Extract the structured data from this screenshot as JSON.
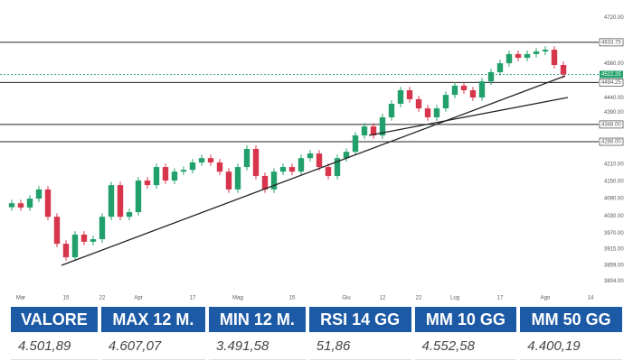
{
  "chart_data": {
    "type": "candlestick",
    "up_color": "#22a06b",
    "down_color": "#d6354b",
    "ohlc": [
      [
        4060,
        4086,
        4048,
        4074
      ],
      [
        4074,
        4086,
        4047,
        4059
      ],
      [
        4059,
        4102,
        4047,
        4090
      ],
      [
        4090,
        4134,
        4078,
        4122
      ],
      [
        4122,
        4134,
        4015,
        4027
      ],
      [
        4027,
        4039,
        3921,
        3933
      ],
      [
        3933,
        3945,
        3874,
        3886
      ],
      [
        3886,
        3977,
        3874,
        3965
      ],
      [
        3965,
        3977,
        3928,
        3940
      ],
      [
        3940,
        3961,
        3928,
        3949
      ],
      [
        3949,
        4039,
        3937,
        4027
      ],
      [
        4027,
        4149,
        4015,
        4137
      ],
      [
        4137,
        4149,
        4015,
        4027
      ],
      [
        4027,
        4055,
        4015,
        4043
      ],
      [
        4043,
        4165,
        4031,
        4153
      ],
      [
        4153,
        4165,
        4125,
        4137
      ],
      [
        4137,
        4212,
        4125,
        4200
      ],
      [
        4200,
        4212,
        4141,
        4153
      ],
      [
        4153,
        4196,
        4141,
        4184
      ],
      [
        4184,
        4202,
        4172,
        4190
      ],
      [
        4190,
        4228,
        4178,
        4216
      ],
      [
        4216,
        4243,
        4204,
        4231
      ],
      [
        4231,
        4243,
        4204,
        4216
      ],
      [
        4216,
        4228,
        4172,
        4184
      ],
      [
        4184,
        4196,
        4110,
        4122
      ],
      [
        4122,
        4212,
        4110,
        4200
      ],
      [
        4200,
        4275,
        4188,
        4263
      ],
      [
        4263,
        4275,
        4157,
        4169
      ],
      [
        4169,
        4181,
        4110,
        4122
      ],
      [
        4122,
        4196,
        4110,
        4184
      ],
      [
        4184,
        4212,
        4172,
        4200
      ],
      [
        4200,
        4212,
        4172,
        4184
      ],
      [
        4184,
        4243,
        4172,
        4231
      ],
      [
        4231,
        4259,
        4219,
        4247
      ],
      [
        4247,
        4259,
        4188,
        4200
      ],
      [
        4200,
        4212,
        4157,
        4169
      ],
      [
        4169,
        4243,
        4157,
        4231
      ],
      [
        4231,
        4265,
        4219,
        4253
      ],
      [
        4253,
        4322,
        4241,
        4310
      ],
      [
        4310,
        4353,
        4298,
        4341
      ],
      [
        4341,
        4353,
        4298,
        4310
      ],
      [
        4310,
        4385,
        4298,
        4373
      ],
      [
        4373,
        4432,
        4361,
        4420
      ],
      [
        4420,
        4479,
        4408,
        4467
      ],
      [
        4467,
        4479,
        4424,
        4436
      ],
      [
        4436,
        4448,
        4392,
        4404
      ],
      [
        4404,
        4416,
        4361,
        4373
      ],
      [
        4373,
        4416,
        4361,
        4404
      ],
      [
        4404,
        4463,
        4392,
        4451
      ],
      [
        4451,
        4495,
        4439,
        4483
      ],
      [
        4483,
        4495,
        4455,
        4467
      ],
      [
        4467,
        4479,
        4430,
        4442
      ],
      [
        4442,
        4510,
        4430,
        4498
      ],
      [
        4498,
        4542,
        4486,
        4530
      ],
      [
        4530,
        4573,
        4518,
        4561
      ],
      [
        4561,
        4605,
        4549,
        4593
      ],
      [
        4593,
        4605,
        4568,
        4580
      ],
      [
        4580,
        4605,
        4568,
        4593
      ],
      [
        4593,
        4614,
        4581,
        4602
      ],
      [
        4602,
        4620,
        4590,
        4608
      ],
      [
        4608,
        4620,
        4543,
        4555
      ],
      [
        4555,
        4567,
        4510,
        4522.25
      ]
    ],
    "ylim": [
      3745,
      4781
    ],
    "yticks": [
      {
        "value": 4720,
        "label": "4720.00"
      },
      {
        "value": 4560,
        "label": "4560.00"
      },
      {
        "value": 4440,
        "label": "4440.00"
      },
      {
        "value": 4390,
        "label": "4390.00"
      },
      {
        "value": 4210,
        "label": "4210.00"
      },
      {
        "value": 4150,
        "label": "4150.00"
      },
      {
        "value": 4090,
        "label": "4090.00"
      },
      {
        "value": 4030,
        "label": "4030.00"
      },
      {
        "value": 3970,
        "label": "3970.00"
      },
      {
        "value": 3915,
        "label": "3915.00"
      },
      {
        "value": 3859,
        "label": "3859.00"
      },
      {
        "value": 3804,
        "label": "3804.00"
      }
    ],
    "xticks": [
      {
        "value": 1,
        "label": "Mar"
      },
      {
        "value": 6,
        "label": "15"
      },
      {
        "value": 10,
        "label": "22"
      },
      {
        "value": 14,
        "label": "Apr"
      },
      {
        "value": 20,
        "label": "17"
      },
      {
        "value": 25,
        "label": "Mag"
      },
      {
        "value": 31,
        "label": "15"
      },
      {
        "value": 37,
        "label": "Giu"
      },
      {
        "value": 41,
        "label": "12"
      },
      {
        "value": 45,
        "label": "22"
      },
      {
        "value": 49,
        "label": "Lug"
      },
      {
        "value": 54,
        "label": "17"
      },
      {
        "value": 59,
        "label": "Ago"
      },
      {
        "value": 64,
        "label": "14"
      }
    ],
    "levels": [
      {
        "value": 4633.75,
        "label": "4633.75"
      },
      {
        "value": 4494.25,
        "label": "4494.25"
      },
      {
        "value": 4348,
        "label": "4348.00"
      },
      {
        "value": 4288,
        "label": "4288.00"
      }
    ],
    "last": {
      "value": 4522.25,
      "label": "4522.25",
      "color": "#22a06b"
    },
    "trendlines": [
      [
        [
          5.5,
          3858
        ],
        [
          61.2,
          4517
        ]
      ],
      [
        [
          39.5,
          4310
        ],
        [
          61.5,
          4442
        ]
      ]
    ]
  },
  "table": {
    "headers": [
      "VALORE",
      "MAX 12 M.",
      "MIN 12 M.",
      "RSI 14 GG",
      "MM 10 GG",
      "MM 50 GG"
    ],
    "rows": [
      [
        "4.501,89",
        "4.607,07",
        "3.491,58",
        "51,86",
        "4.552,58",
        "4.400,19"
      ]
    ]
  }
}
